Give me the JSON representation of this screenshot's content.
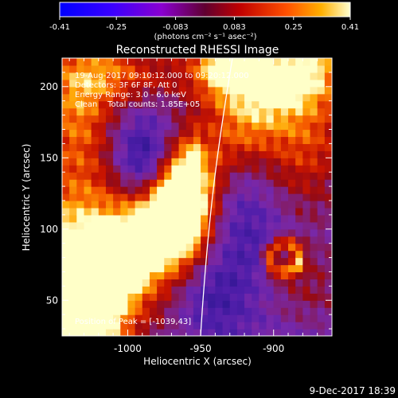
{
  "chart_data": {
    "type": "heatmap",
    "title": "Reconstructed RHESSI Image",
    "xlabel": "Heliocentric X (arcsec)",
    "ylabel": "Heliocentric Y (arcsec)",
    "xlim": [
      -1045,
      -860
    ],
    "ylim": [
      25,
      220
    ],
    "x_ticks": [
      -1000,
      -950,
      -900
    ],
    "y_ticks": [
      50,
      100,
      150,
      200
    ],
    "colorbar": {
      "ticks": [
        "-0.41",
        "-0.25",
        "-0.083",
        "0.083",
        "0.25",
        "0.41"
      ],
      "label": "(photons cm⁻² s⁻¹ asec⁻²)",
      "range": [
        -0.41,
        0.41
      ]
    },
    "annotations": [
      "19-Aug-2017 09:10:12.000 to 09:20:12.000",
      "Detectors: 3F 6F 8F, Att 0",
      "Energy Range: 3.0 - 6.0 keV",
      "Clean    Total counts: 1.85E+05"
    ],
    "peak_label": "Position of Peak = [-1039,43]",
    "peak": [
      -1039,
      43
    ],
    "timestamp": "9-Dec-2017 18:39"
  }
}
